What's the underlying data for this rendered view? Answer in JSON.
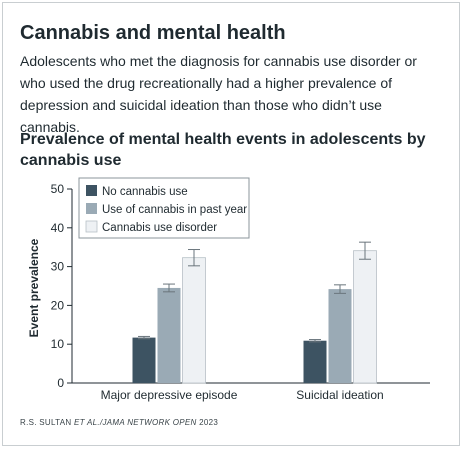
{
  "headline": "Cannabis and mental health",
  "dek": "Adolescents who met the diagnosis for cannabis use disorder or who used the drug recreationally had a higher prevalence of depression and suicidal ideation than those who didn’t use cannabis.",
  "source": {
    "prefix": "R.S. SULTAN ",
    "italic": "ET AL./JAMA NETWORK OPEN",
    "suffix": " 2023"
  },
  "colors": {
    "no_use": "#3d5362",
    "past_year": "#9aaab5",
    "disorder": "#eef1f4"
  },
  "chart_data": {
    "type": "bar",
    "title": "Prevalence of mental health events in adolescents by cannabis use",
    "xlabel": "",
    "ylabel": "Event prevalence",
    "ylim": [
      0,
      50
    ],
    "yticks": [
      0,
      10,
      20,
      30,
      40,
      50
    ],
    "categories": [
      "Major depressive episode",
      "Suicidal ideation"
    ],
    "series": [
      {
        "name": "No cannabis use",
        "values": [
          11.7,
          10.9
        ],
        "error": [
          0.3,
          0.3
        ]
      },
      {
        "name": "Use of cannabis in past year",
        "values": [
          24.5,
          24.2
        ],
        "error": [
          1.0,
          1.1
        ]
      },
      {
        "name": "Cannabis use disorder",
        "values": [
          32.3,
          34.1
        ],
        "error": [
          2.1,
          2.2
        ]
      }
    ],
    "legend_position": "top-left",
    "error_bars": true,
    "grid": false
  }
}
